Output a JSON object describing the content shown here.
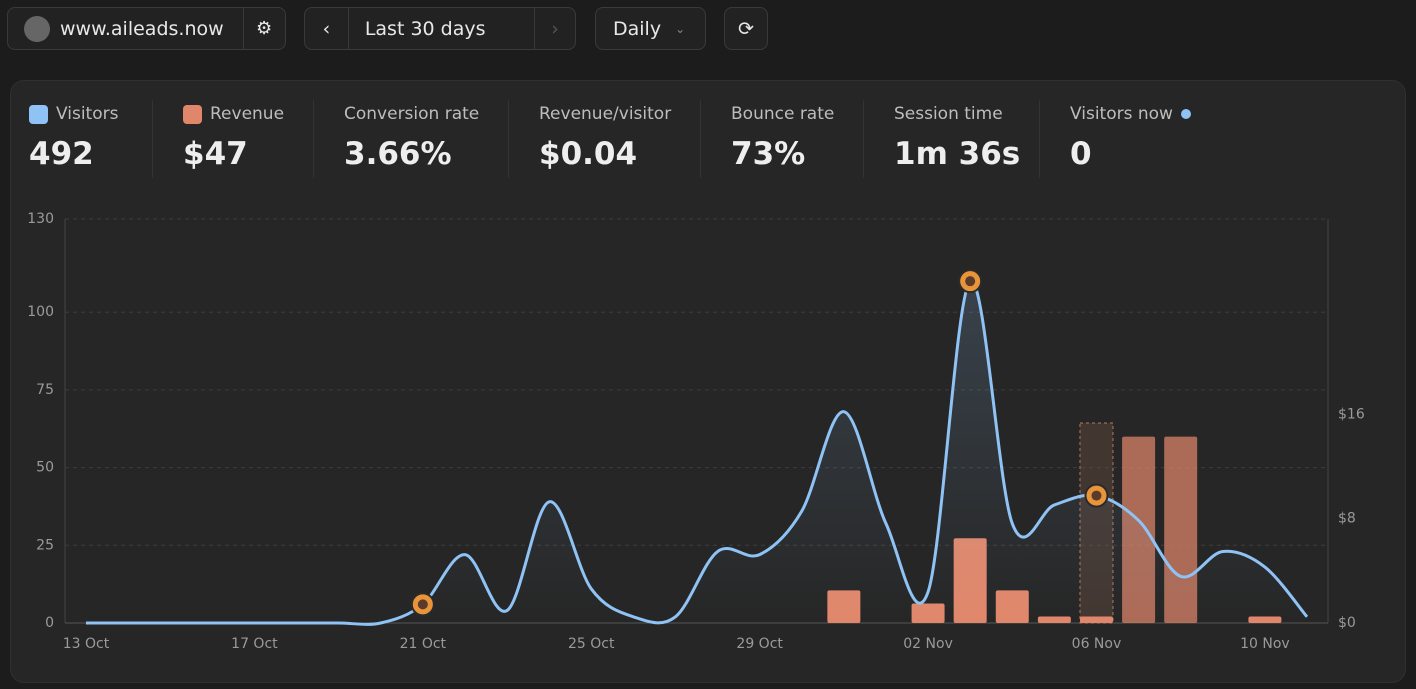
{
  "toolbar": {
    "site": "www.aileads.now",
    "range": "Last 30 days",
    "interval": "Daily"
  },
  "stats": [
    {
      "value": "492"
    },
    {
      "value": "$47"
    },
    {
      "label": "Conversion rate",
      "value": "3.66%"
    },
    {
      "label": "Revenue/visitor",
      "value": "$0.04"
    },
    {
      "label": "Bounce rate",
      "value": "73%"
    },
    {
      "label": "Session time",
      "value": "1m 36s"
    },
    {
      "label": "Visitors now",
      "value": "0"
    }
  ],
  "chart_data": {
    "type": "line",
    "grid": true,
    "categories": [
      "13 Oct",
      null,
      null,
      null,
      "17 Oct",
      null,
      null,
      null,
      "21 Oct",
      null,
      null,
      null,
      "25 Oct",
      null,
      null,
      null,
      "29 Oct",
      null,
      null,
      null,
      "02 Nov",
      null,
      null,
      null,
      "06 Nov",
      null,
      null,
      null,
      "10 Nov",
      null
    ],
    "ylim": [
      0,
      130
    ],
    "yticks": [
      0,
      25,
      50,
      75,
      100,
      130
    ],
    "y2lim": [
      0,
      31
    ],
    "y2ticks": [
      {
        "value": 0,
        "label": "$0"
      },
      {
        "value": 8,
        "label": "$8"
      },
      {
        "value": 16,
        "label": "$16"
      }
    ],
    "series": [
      {
        "name": "Visitors",
        "color": "#8fc3f5",
        "values": [
          0,
          0,
          0,
          0,
          0,
          0,
          0,
          0,
          6,
          22,
          4,
          39,
          11,
          2,
          2,
          23,
          22,
          36,
          68,
          32,
          10,
          110,
          32,
          38,
          41,
          33,
          15,
          23,
          18,
          2
        ]
      },
      {
        "name": "Revenue",
        "type": "bar",
        "axis": "y2",
        "color": "#e0876b",
        "values": [
          0,
          0,
          0,
          0,
          0,
          0,
          0,
          0,
          0,
          0,
          0,
          0,
          0,
          0,
          0,
          0,
          0,
          0,
          2.5,
          0,
          1.5,
          6.5,
          2.5,
          0.5,
          0.5,
          14.3,
          14.3,
          0,
          0.5,
          0
        ]
      }
    ]
  }
}
